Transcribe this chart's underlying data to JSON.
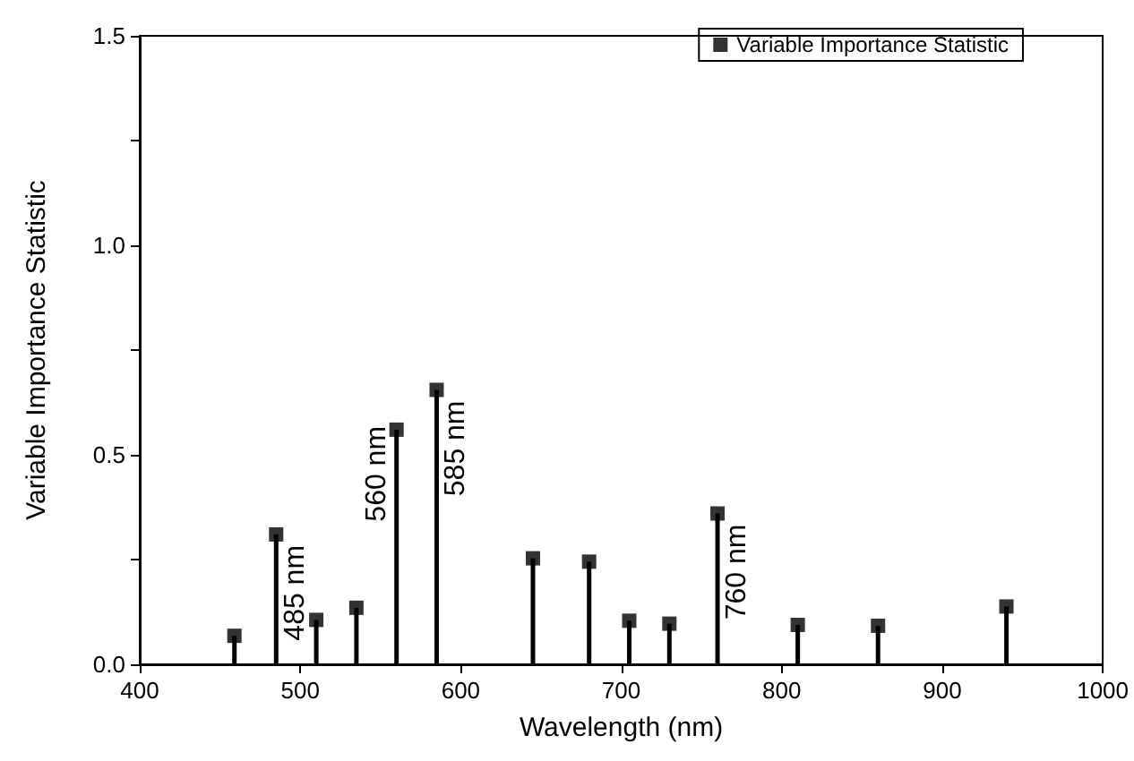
{
  "chart_data": {
    "type": "lollipop",
    "xlabel": "Wavelength (nm)",
    "ylabel": "Variable Importance Statistic",
    "x": [
      459,
      485,
      510,
      535,
      560,
      585,
      645,
      680,
      705,
      730,
      760,
      810,
      860,
      940
    ],
    "series": [
      {
        "name": "Variable Importance Statistic",
        "color": "#000000",
        "values": [
          0.068,
          0.31,
          0.106,
          0.135,
          0.56,
          0.655,
          0.253,
          0.245,
          0.104,
          0.097,
          0.36,
          0.094,
          0.092,
          0.138
        ]
      }
    ],
    "xlim": [
      400,
      1000
    ],
    "xticks": [
      400,
      500,
      600,
      700,
      800,
      900,
      1000
    ],
    "ylim": [
      0,
      1.5
    ],
    "yticks": [
      {
        "value": 0,
        "label": "0.0"
      },
      {
        "value": 0.25,
        "label": null
      },
      {
        "value": 0.5,
        "label": "0.5"
      },
      {
        "value": 0.75,
        "label": null
      },
      {
        "value": 1,
        "label": "1.0"
      },
      {
        "value": 1.25,
        "label": null
      },
      {
        "value": 1.5,
        "label": "1.5"
      }
    ],
    "annotations": [
      {
        "text": "485 nm",
        "x": 485,
        "y": 0.31
      },
      {
        "text": "560 nm",
        "x": 560,
        "y": 0.56
      },
      {
        "text": "585 nm",
        "x": 585,
        "y": 0.655
      },
      {
        "text": "760 nm",
        "x": 760,
        "y": 0.36
      }
    ],
    "marker": "square",
    "legend": "top right",
    "grid": false
  }
}
